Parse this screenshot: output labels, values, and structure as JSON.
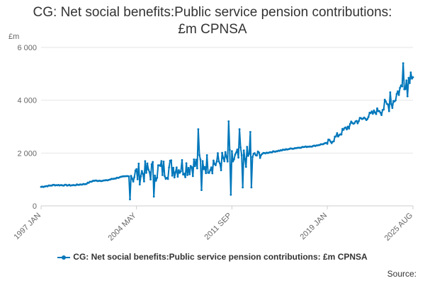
{
  "title_line1": "CG: Net social benefits:Public service pension contributions:",
  "title_line2": "£m CPNSA",
  "source_label": "Source:",
  "chart_data": {
    "type": "line",
    "ylabel": "£m",
    "xlabel": "",
    "ylim": [
      0,
      6000
    ],
    "y_ticks": [
      0,
      2000,
      4000,
      6000
    ],
    "y_tick_labels": [
      "0",
      "2 000",
      "4 000",
      "6 000"
    ],
    "x_range": [
      "1997-01",
      "2025-08"
    ],
    "x_ticks": [
      "1997-01",
      "2004-05",
      "2011-09",
      "2019-01",
      "2025-08"
    ],
    "x_tick_labels": [
      "1997 JAN",
      "2004 MAY",
      "2011 SEP",
      "2019 JAN",
      "2025 AUG"
    ],
    "grid": "horizontal",
    "legend_position": "bottom",
    "colors": {
      "series": "#0077bb",
      "grid": "#e6e6e6",
      "axis": "#cccccc",
      "text": "#666666"
    },
    "series": [
      {
        "name": "CG: Net social benefits:Public service pension contributions: £m CPNSA",
        "anchors": [
          [
            "1997-01",
            720
          ],
          [
            "1998-01",
            790
          ],
          [
            "1999-06",
            780
          ],
          [
            "2000-06",
            830
          ],
          [
            "2001-01",
            950
          ],
          [
            "2002-01",
            960
          ],
          [
            "2003-01",
            1080
          ],
          [
            "2004-01",
            1150
          ],
          [
            "2005-01",
            1280
          ],
          [
            "2006-06",
            1400
          ],
          [
            "2008-01",
            1500
          ],
          [
            "2009-06",
            1580
          ],
          [
            "2011-01",
            1680
          ],
          [
            "2012-01",
            1780
          ],
          [
            "2013-01",
            1850
          ],
          [
            "2014-01",
            1980
          ],
          [
            "2015-06",
            2100
          ],
          [
            "2016-01",
            2150
          ],
          [
            "2017-01",
            2220
          ],
          [
            "2018-01",
            2270
          ],
          [
            "2019-01",
            2380
          ],
          [
            "2019-06",
            2500
          ],
          [
            "2020-01",
            2750
          ],
          [
            "2021-01",
            3150
          ],
          [
            "2022-01",
            3350
          ],
          [
            "2023-01",
            3650
          ],
          [
            "2024-01",
            3900
          ],
          [
            "2024-06",
            4300
          ],
          [
            "2025-01",
            4700
          ],
          [
            "2025-08",
            5100
          ]
        ],
        "volatile_periods": [
          {
            "start": "2004-01",
            "end": "2013-01",
            "amplitude": 420
          },
          {
            "start": "2013-01",
            "end": "2014-01",
            "amplitude": 160
          },
          {
            "start": "2019-01",
            "end": "2023-01",
            "amplitude": 120
          },
          {
            "start": "2023-01",
            "end": "2025-08",
            "amplitude": 280
          }
        ],
        "extremes": [
          [
            "2003-11",
            250
          ],
          [
            "2005-09",
            350
          ],
          [
            "2009-02",
            2900
          ],
          [
            "2009-05",
            600
          ],
          [
            "2011-06",
            3200
          ],
          [
            "2011-08",
            420
          ],
          [
            "2012-04",
            2900
          ],
          [
            "2012-07",
            700
          ],
          [
            "2013-02",
            2800
          ],
          [
            "2013-03",
            700
          ],
          [
            "2023-11",
            4300
          ],
          [
            "2024-11",
            5400
          ],
          [
            "2025-03",
            4150
          ]
        ]
      }
    ]
  }
}
